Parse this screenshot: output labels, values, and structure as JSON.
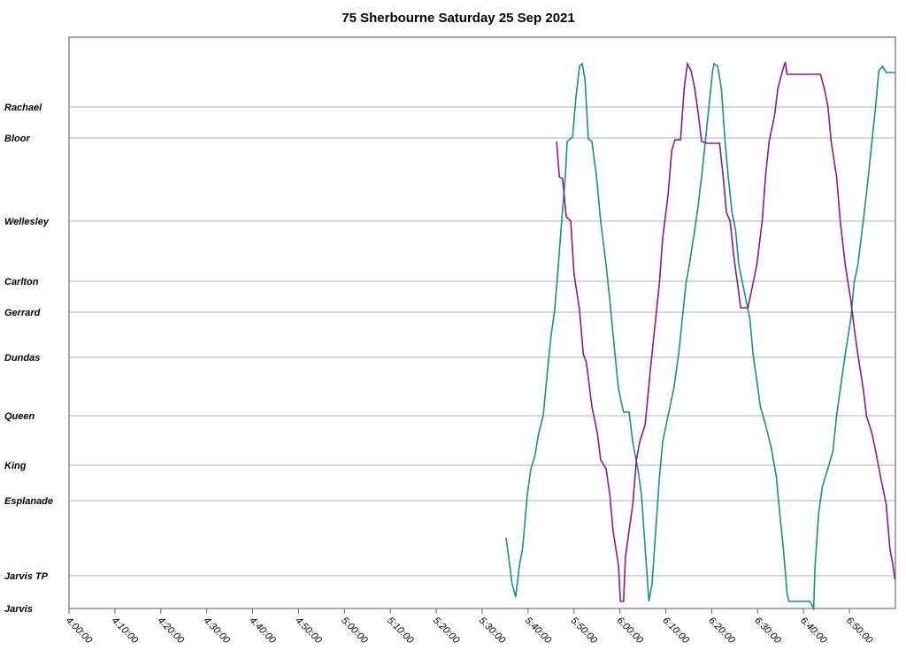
{
  "chart_data": {
    "type": "line",
    "title": "75 Sherbourne Saturday 25 Sep 2021",
    "xlim": [
      240,
      420
    ],
    "xticks": [
      {
        "value": 240,
        "label": "4:00:00"
      },
      {
        "value": 250,
        "label": "4:10:00"
      },
      {
        "value": 260,
        "label": "4:20:00"
      },
      {
        "value": 270,
        "label": "4:30:00"
      },
      {
        "value": 280,
        "label": "4:40:00"
      },
      {
        "value": 290,
        "label": "4:50:00"
      },
      {
        "value": 300,
        "label": "5:00:00"
      },
      {
        "value": 310,
        "label": "5:10:00"
      },
      {
        "value": 320,
        "label": "5:20:00"
      },
      {
        "value": 330,
        "label": "5:30:00"
      },
      {
        "value": 340,
        "label": "5:40:00"
      },
      {
        "value": 350,
        "label": "5:50:00"
      },
      {
        "value": 360,
        "label": "6:00:00"
      },
      {
        "value": 370,
        "label": "6:10:00"
      },
      {
        "value": 380,
        "label": "6:20:00"
      },
      {
        "value": 390,
        "label": "6:30:00"
      },
      {
        "value": 400,
        "label": "6:40:00"
      },
      {
        "value": 410,
        "label": "6:50:00"
      }
    ],
    "ylim": [
      0,
      646
    ],
    "yticks": [
      {
        "value": 0,
        "label": "Jarvis"
      },
      {
        "value": 37,
        "label": "Jarvis TP"
      },
      {
        "value": 122,
        "label": "Esplanade"
      },
      {
        "value": 162,
        "label": "King"
      },
      {
        "value": 218,
        "label": "Queen"
      },
      {
        "value": 284,
        "label": "Dundas"
      },
      {
        "value": 335,
        "label": "Gerrard"
      },
      {
        "value": 370,
        "label": "Carlton"
      },
      {
        "value": 438,
        "label": "Wellesley"
      },
      {
        "value": 532,
        "label": "Bloor"
      },
      {
        "value": 567,
        "label": "Rachael"
      }
    ],
    "grid": true,
    "series": [
      {
        "color": "#1a8f8a",
        "x": [
          335.2,
          335.9,
          336.5,
          337.3,
          338.1,
          338.8,
          339.8,
          340.6,
          341.5,
          342.3,
          343.3,
          344.2,
          345.0,
          345.8,
          346.6,
          347.3,
          348.1,
          348.5,
          349.7,
          350.4,
          351.2,
          351.8,
          352.4,
          353.1,
          353.9,
          354.9,
          355.8,
          357.0,
          357.8,
          358.9,
          359.7,
          360.8,
          362.0,
          362.8,
          363.9,
          364.7,
          365.5,
          366.3,
          367.0,
          367.8,
          368.6,
          369.3,
          370.5,
          371.7,
          372.8,
          373.6,
          374.4,
          375.1,
          376.3,
          377.1,
          377.8,
          378.6,
          379.4,
          380.2,
          380.5,
          381.3,
          382.1,
          382.9,
          383.6,
          384.4,
          385.2,
          385.9,
          387.1,
          388.3,
          389.0,
          389.8,
          390.6,
          391.7,
          392.9,
          394.1,
          394.8,
          395.6,
          396.4,
          396.8,
          398.3,
          401.4,
          402.2,
          402.5,
          403.3,
          404.1,
          405.3,
          406.4,
          407.2,
          408.0,
          409.1,
          410.3,
          411.0,
          411.8,
          413.0,
          414.1,
          414.9,
          415.7,
          416.4,
          417.2,
          418.0,
          419.9
        ],
        "values": [
          80,
          53,
          28,
          13,
          48,
          68,
          128,
          158,
          173,
          198,
          218,
          268,
          308,
          338,
          388,
          438,
          488,
          528,
          533,
          578,
          613,
          616,
          598,
          531,
          528,
          488,
          438,
          388,
          348,
          288,
          248,
          222,
          222,
          188,
          158,
          128,
          68,
          8,
          28,
          88,
          148,
          188,
          218,
          248,
          288,
          328,
          368,
          388,
          428,
          458,
          488,
          528,
          568,
          608,
          616,
          613,
          588,
          528,
          488,
          448,
          428,
          388,
          358,
          328,
          288,
          258,
          228,
          208,
          183,
          148,
          108,
          68,
          18,
          8,
          8,
          8,
          0,
          48,
          108,
          138,
          158,
          178,
          218,
          248,
          288,
          328,
          368,
          388,
          438,
          488,
          528,
          568,
          608,
          613,
          606,
          606
        ]
      },
      {
        "color": "#8b1a8b",
        "x": [
          346.2,
          346.8,
          347.5,
          348.3,
          349.3,
          350.0,
          351.2,
          352.0,
          352.7,
          353.9,
          355.1,
          355.8,
          357.0,
          357.8,
          358.5,
          359.7,
          360.1,
          360.8,
          361.2,
          362.0,
          362.8,
          363.6,
          364.3,
          365.5,
          366.6,
          367.8,
          368.6,
          369.3,
          370.5,
          371.3,
          372.0,
          373.2,
          374.0,
          374.7,
          375.5,
          376.3,
          377.1,
          377.8,
          379.0,
          381.7,
          382.5,
          383.2,
          384.0,
          384.8,
          385.6,
          386.3,
          387.9,
          388.6,
          389.8,
          391.0,
          391.7,
          392.5,
          393.7,
          394.4,
          395.2,
          396.0,
          396.4,
          403.7,
          404.5,
          405.3,
          406.0,
          407.2,
          408.0,
          409.1,
          410.3,
          411.0,
          411.8,
          413.0,
          413.7,
          414.9,
          415.7,
          416.8,
          418.0,
          418.8,
          419.5,
          419.9
        ],
        "values": [
          528,
          488,
          486,
          443,
          438,
          378,
          338,
          288,
          278,
          228,
          198,
          168,
          158,
          128,
          88,
          48,
          8,
          8,
          58,
          88,
          118,
          168,
          188,
          208,
          268,
          328,
          368,
          418,
          468,
          518,
          530,
          530,
          588,
          616,
          608,
          588,
          558,
          528,
          526,
          526,
          488,
          448,
          438,
          398,
          368,
          340,
          340,
          358,
          388,
          438,
          488,
          528,
          558,
          588,
          604,
          618,
          604,
          604,
          588,
          568,
          528,
          488,
          438,
          388,
          348,
          318,
          288,
          248,
          218,
          198,
          178,
          148,
          118,
          68,
          48,
          33
        ]
      }
    ]
  }
}
